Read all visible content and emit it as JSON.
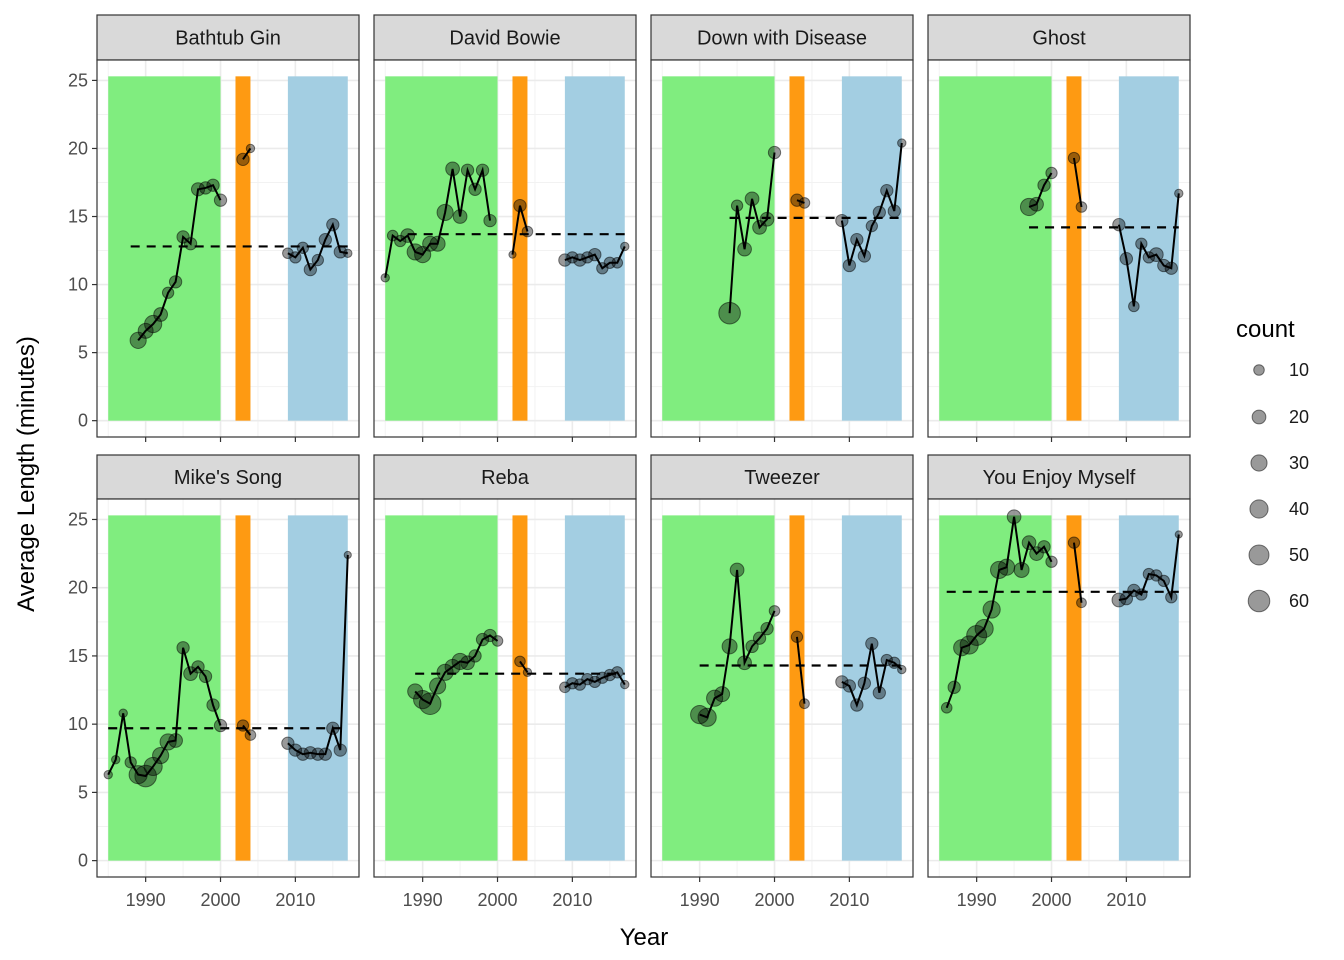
{
  "chart_data": {
    "type": "line",
    "xlabel": "Year",
    "ylabel": "Average Length (minutes)",
    "xlim": [
      1983.5,
      2018.5
    ],
    "ylim": [
      -1.2,
      26.5
    ],
    "x_ticks": [
      1990,
      2000,
      2010
    ],
    "y_ticks": [
      0,
      5,
      10,
      15,
      20,
      25
    ],
    "grid": true,
    "era_bands": [
      {
        "x_start": 1985,
        "x_end": 2000,
        "color": "#80ed7f"
      },
      {
        "x_start": 2002,
        "x_end": 2004,
        "color": "#fe9a12"
      },
      {
        "x_start": 2009,
        "x_end": 2017,
        "color": "#a3cee2"
      }
    ],
    "era_band_top": 25.3,
    "legend": {
      "title": "count",
      "position": "right",
      "sizes": [
        10,
        20,
        30,
        40,
        50,
        60
      ]
    },
    "panels": [
      {
        "title": "Bathtub Gin",
        "mean": 12.8,
        "mean_x": [
          1988,
          2017
        ],
        "points": [
          [
            1989,
            5.9,
            30
          ],
          [
            1990,
            6.6,
            25
          ],
          [
            1991,
            7.1,
            35
          ],
          [
            1992,
            7.8,
            20
          ],
          [
            1993,
            9.4,
            12
          ],
          [
            1994,
            10.2,
            15
          ],
          [
            1995,
            13.5,
            15
          ],
          [
            1996,
            13.0,
            15
          ],
          [
            1997,
            17.0,
            18
          ],
          [
            1998,
            17.1,
            15
          ],
          [
            1999,
            17.3,
            15
          ],
          [
            2000,
            16.2,
            15
          ],
          [
            2003,
            19.2,
            15
          ],
          [
            2004,
            20.0,
            5
          ],
          [
            2009,
            12.3,
            10
          ],
          [
            2010,
            12.0,
            12
          ],
          [
            2011,
            12.7,
            12
          ],
          [
            2012,
            11.1,
            15
          ],
          [
            2013,
            11.8,
            12
          ],
          [
            2014,
            13.3,
            15
          ],
          [
            2015,
            14.4,
            15
          ],
          [
            2016,
            12.4,
            15
          ],
          [
            2017,
            12.3,
            5
          ]
        ]
      },
      {
        "title": "David Bowie",
        "mean": 13.7,
        "mean_x": [
          1988,
          2017
        ],
        "points": [
          [
            1985,
            10.5,
            5
          ],
          [
            1986,
            13.6,
            10
          ],
          [
            1987,
            13.2,
            12
          ],
          [
            1988,
            13.6,
            20
          ],
          [
            1989,
            12.4,
            30
          ],
          [
            1990,
            12.2,
            30
          ],
          [
            1991,
            13.0,
            25
          ],
          [
            1992,
            13.0,
            25
          ],
          [
            1993,
            15.3,
            30
          ],
          [
            1994,
            18.5,
            20
          ],
          [
            1995,
            15.0,
            20
          ],
          [
            1996,
            18.4,
            15
          ],
          [
            1997,
            17.0,
            15
          ],
          [
            1998,
            18.4,
            15
          ],
          [
            1999,
            14.7,
            15
          ],
          [
            2002,
            12.2,
            3
          ],
          [
            2003,
            15.8,
            15
          ],
          [
            2004,
            13.9,
            10
          ],
          [
            2009,
            11.8,
            15
          ],
          [
            2010,
            12.0,
            12
          ],
          [
            2011,
            11.8,
            15
          ],
          [
            2012,
            12.0,
            12
          ],
          [
            2013,
            12.2,
            15
          ],
          [
            2014,
            11.2,
            12
          ],
          [
            2015,
            11.6,
            12
          ],
          [
            2016,
            11.6,
            10
          ],
          [
            2017,
            12.8,
            5
          ]
        ]
      },
      {
        "title": "Down with Disease",
        "mean": 14.9,
        "mean_x": [
          1994,
          2017
        ],
        "points": [
          [
            1994,
            7.9,
            60
          ],
          [
            1995,
            15.8,
            12
          ],
          [
            1996,
            12.6,
            20
          ],
          [
            1997,
            16.3,
            20
          ],
          [
            1998,
            14.2,
            20
          ],
          [
            1999,
            14.8,
            20
          ],
          [
            2000,
            19.7,
            15
          ],
          [
            2003,
            16.2,
            15
          ],
          [
            2004,
            16.0,
            10
          ],
          [
            2009,
            14.7,
            15
          ],
          [
            2010,
            11.4,
            15
          ],
          [
            2011,
            13.3,
            15
          ],
          [
            2012,
            12.1,
            15
          ],
          [
            2013,
            14.3,
            12
          ],
          [
            2014,
            15.3,
            15
          ],
          [
            2015,
            16.9,
            15
          ],
          [
            2016,
            15.4,
            15
          ],
          [
            2017,
            20.4,
            5
          ]
        ]
      },
      {
        "title": "Ghost",
        "mean": 14.2,
        "mean_x": [
          1997,
          2017
        ],
        "points": [
          [
            1997,
            15.7,
            35
          ],
          [
            1998,
            15.9,
            20
          ],
          [
            1999,
            17.3,
            15
          ],
          [
            2000,
            18.2,
            12
          ],
          [
            2003,
            19.3,
            12
          ],
          [
            2004,
            15.7,
            10
          ],
          [
            2009,
            14.4,
            15
          ],
          [
            2010,
            11.9,
            15
          ],
          [
            2011,
            8.4,
            10
          ],
          [
            2012,
            13.0,
            12
          ],
          [
            2013,
            12.0,
            12
          ],
          [
            2014,
            12.2,
            20
          ],
          [
            2015,
            11.4,
            15
          ],
          [
            2016,
            11.2,
            15
          ],
          [
            2017,
            16.7,
            5
          ]
        ]
      },
      {
        "title": "Mike's Song",
        "mean": 9.7,
        "mean_x": [
          1985,
          2017
        ],
        "points": [
          [
            1985,
            6.3,
            5
          ],
          [
            1986,
            7.4,
            5
          ],
          [
            1987,
            10.8,
            5
          ],
          [
            1988,
            7.2,
            12
          ],
          [
            1989,
            6.3,
            40
          ],
          [
            1990,
            6.2,
            60
          ],
          [
            1991,
            6.9,
            40
          ],
          [
            1992,
            7.7,
            30
          ],
          [
            1993,
            8.7,
            30
          ],
          [
            1994,
            8.8,
            20
          ],
          [
            1995,
            15.6,
            15
          ],
          [
            1996,
            13.7,
            20
          ],
          [
            1997,
            14.2,
            15
          ],
          [
            1998,
            13.5,
            15
          ],
          [
            1999,
            11.4,
            15
          ],
          [
            2000,
            9.9,
            15
          ],
          [
            2003,
            9.9,
            12
          ],
          [
            2004,
            9.2,
            10
          ],
          [
            2009,
            8.6,
            15
          ],
          [
            2010,
            8.1,
            15
          ],
          [
            2011,
            7.8,
            15
          ],
          [
            2012,
            7.9,
            15
          ],
          [
            2013,
            7.8,
            15
          ],
          [
            2014,
            7.8,
            15
          ],
          [
            2015,
            9.7,
            15
          ],
          [
            2016,
            8.1,
            15
          ],
          [
            2017,
            22.4,
            3
          ]
        ]
      },
      {
        "title": "Reba",
        "mean": 13.7,
        "mean_x": [
          1989,
          2017
        ],
        "points": [
          [
            1989,
            12.4,
            25
          ],
          [
            1990,
            11.8,
            40
          ],
          [
            1991,
            11.5,
            60
          ],
          [
            1992,
            12.8,
            30
          ],
          [
            1993,
            13.8,
            30
          ],
          [
            1994,
            14.2,
            25
          ],
          [
            1995,
            14.6,
            30
          ],
          [
            1996,
            14.5,
            20
          ],
          [
            1997,
            15.0,
            15
          ],
          [
            1998,
            16.2,
            15
          ],
          [
            1999,
            16.5,
            15
          ],
          [
            2000,
            16.1,
            10
          ],
          [
            2003,
            14.6,
            10
          ],
          [
            2004,
            13.8,
            5
          ],
          [
            2009,
            12.7,
            10
          ],
          [
            2010,
            13.0,
            12
          ],
          [
            2011,
            12.9,
            12
          ],
          [
            2012,
            13.3,
            12
          ],
          [
            2013,
            13.1,
            12
          ],
          [
            2014,
            13.4,
            12
          ],
          [
            2015,
            13.6,
            12
          ],
          [
            2016,
            13.8,
            12
          ],
          [
            2017,
            12.9,
            5
          ]
        ]
      },
      {
        "title": "Tweezer",
        "mean": 14.3,
        "mean_x": [
          1990,
          2017
        ],
        "points": [
          [
            1990,
            10.7,
            40
          ],
          [
            1991,
            10.5,
            40
          ],
          [
            1992,
            11.9,
            30
          ],
          [
            1993,
            12.2,
            25
          ],
          [
            1994,
            15.7,
            25
          ],
          [
            1995,
            21.3,
            20
          ],
          [
            1996,
            14.5,
            20
          ],
          [
            1997,
            15.7,
            15
          ],
          [
            1998,
            16.3,
            15
          ],
          [
            1999,
            17.0,
            15
          ],
          [
            2000,
            18.3,
            10
          ],
          [
            2003,
            16.4,
            12
          ],
          [
            2004,
            11.5,
            8
          ],
          [
            2009,
            13.1,
            15
          ],
          [
            2010,
            12.8,
            15
          ],
          [
            2011,
            11.4,
            15
          ],
          [
            2012,
            13.0,
            15
          ],
          [
            2013,
            15.9,
            15
          ],
          [
            2014,
            12.3,
            15
          ],
          [
            2015,
            14.7,
            12
          ],
          [
            2016,
            14.5,
            12
          ],
          [
            2017,
            14.0,
            5
          ]
        ]
      },
      {
        "title": "You Enjoy Myself",
        "mean": 19.7,
        "mean_x": [
          1986,
          2017
        ],
        "points": [
          [
            1986,
            11.2,
            10
          ],
          [
            1987,
            12.7,
            15
          ],
          [
            1988,
            15.6,
            30
          ],
          [
            1989,
            15.8,
            40
          ],
          [
            1990,
            16.5,
            50
          ],
          [
            1991,
            17.0,
            40
          ],
          [
            1992,
            18.4,
            35
          ],
          [
            1993,
            21.3,
            35
          ],
          [
            1994,
            21.5,
            30
          ],
          [
            1995,
            25.2,
            20
          ],
          [
            1996,
            21.3,
            25
          ],
          [
            1997,
            23.3,
            20
          ],
          [
            1998,
            22.5,
            20
          ],
          [
            1999,
            23.0,
            15
          ],
          [
            2000,
            21.9,
            12
          ],
          [
            2003,
            23.3,
            12
          ],
          [
            2004,
            18.9,
            8
          ],
          [
            2009,
            19.1,
            20
          ],
          [
            2010,
            19.2,
            15
          ],
          [
            2011,
            19.8,
            15
          ],
          [
            2012,
            19.5,
            12
          ],
          [
            2013,
            21.0,
            12
          ],
          [
            2014,
            20.9,
            12
          ],
          [
            2015,
            20.5,
            12
          ],
          [
            2016,
            19.3,
            12
          ],
          [
            2017,
            23.9,
            3
          ]
        ]
      }
    ]
  }
}
